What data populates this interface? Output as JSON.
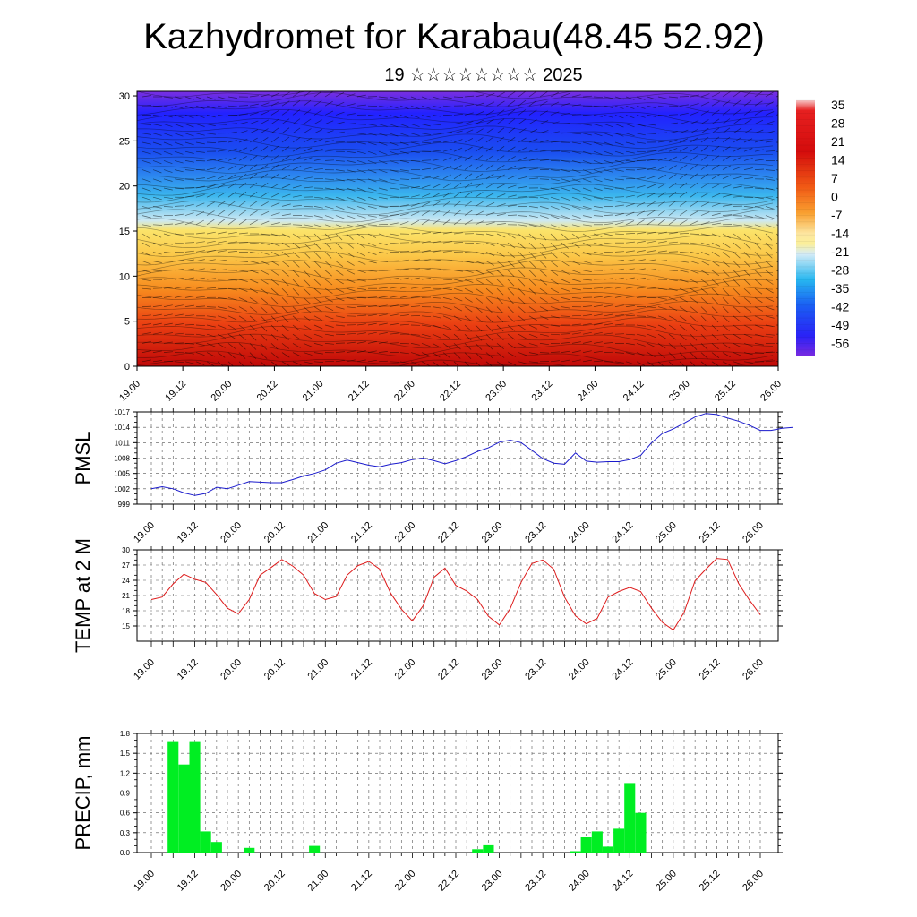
{
  "header": {
    "title": "Kazhydromet for Karabau(48.45 52.92)",
    "subtitle": "19 ☆☆☆☆☆☆☆☆ 2025"
  },
  "chart_data": [
    {
      "type": "heatmap",
      "description_key": "vertical-cross-section",
      "x_tick_labels": [
        "19.00",
        "19.12",
        "20.00",
        "20.12",
        "21.00",
        "21.12",
        "22.00",
        "22.12",
        "23.00",
        "23.12",
        "24.00",
        "24.12",
        "25.00",
        "25.12",
        "26.00"
      ],
      "y_tick_labels": [
        "0",
        "5",
        "10",
        "15",
        "20",
        "25",
        "30"
      ],
      "ylim": [
        0,
        30.5
      ],
      "colorbar_labels": [
        "35",
        "28",
        "21",
        "14",
        "7",
        "0",
        "-7",
        "-14",
        "-21",
        "-28",
        "-35",
        "-42",
        "-49",
        "-56"
      ],
      "colors": {
        "cold": "#5a1fd0",
        "cool": "#2a9fe8",
        "mild": "#fbe46a",
        "warm": "#f88a1e",
        "hot": "#d81010"
      }
    },
    {
      "type": "line",
      "ylabel": "PMSL",
      "y_tick_labels": [
        "999",
        "1002",
        "1005",
        "1008",
        "1011",
        "1014",
        "1017"
      ],
      "ylim": [
        999,
        1017
      ],
      "x_tick_labels": [
        "19.00",
        "19.12",
        "20.00",
        "20.12",
        "21.00",
        "21.12",
        "22.00",
        "22.12",
        "23.00",
        "23.12",
        "24.00",
        "24.12",
        "25.00",
        "25.12",
        "26.00"
      ],
      "x_step_hours": 3,
      "color": "#1a1acc",
      "values": [
        1002.0,
        1002.4,
        1002.0,
        1001.2,
        1000.7,
        1001.1,
        1002.3,
        1002.0,
        1002.7,
        1003.4,
        1003.3,
        1003.2,
        1003.2,
        1003.8,
        1004.5,
        1005.0,
        1005.7,
        1007.0,
        1007.6,
        1007.1,
        1006.6,
        1006.3,
        1006.8,
        1007.1,
        1007.7,
        1008.0,
        1007.5,
        1006.9,
        1007.5,
        1008.3,
        1009.3,
        1010.0,
        1011.1,
        1011.5,
        1011.0,
        1009.5,
        1007.9,
        1007.0,
        1006.8,
        1009.0,
        1007.4,
        1007.2,
        1007.3,
        1007.3,
        1007.7,
        1008.5,
        1011.0,
        1012.8,
        1013.7,
        1014.8,
        1016.0,
        1016.7,
        1016.5,
        1015.8,
        1015.2,
        1014.4,
        1013.4,
        1013.4,
        1013.8,
        1014.0
      ]
    },
    {
      "type": "line",
      "ylabel": "TEMP at 2 M",
      "y_tick_labels": [
        "15",
        "18",
        "21",
        "24",
        "27",
        "30"
      ],
      "ylim": [
        12,
        30
      ],
      "x_tick_labels": [
        "19.00",
        "19.12",
        "20.00",
        "20.12",
        "21.00",
        "21.12",
        "22.00",
        "22.12",
        "23.00",
        "23.12",
        "24.00",
        "24.12",
        "25.00",
        "25.12",
        "26.00"
      ],
      "x_step_hours": 3,
      "color": "#dd1a1a",
      "values": [
        20.2,
        20.7,
        23.3,
        25.2,
        24.2,
        23.6,
        21.2,
        18.5,
        17.4,
        20.2,
        25.0,
        26.5,
        28.1,
        26.8,
        25.0,
        21.4,
        20.2,
        20.8,
        25.0,
        26.9,
        27.7,
        26.2,
        21.5,
        18.3,
        16.0,
        19.0,
        24.6,
        26.4,
        23.0,
        21.9,
        20.2,
        16.9,
        15.2,
        18.4,
        23.6,
        27.3,
        28.0,
        26.2,
        20.7,
        17.0,
        15.4,
        16.5,
        20.7,
        21.8,
        22.6,
        21.8,
        18.5,
        15.7,
        14.2,
        17.7,
        23.9,
        26.2,
        28.3,
        28.1,
        23.4,
        20.1,
        17.2
      ]
    },
    {
      "type": "bar",
      "ylabel": "PRECIP, mm",
      "y_tick_labels": [
        "0.0",
        "0.3",
        "0.6",
        "0.9",
        "1.2",
        "1.5",
        "1.8"
      ],
      "ylim": [
        0,
        1.8
      ],
      "x_tick_labels": [
        "19.00",
        "19.12",
        "20.00",
        "20.12",
        "21.00",
        "21.12",
        "22.00",
        "22.12",
        "23.00",
        "23.12",
        "24.00",
        "24.12",
        "25.00",
        "25.12",
        "26.00"
      ],
      "x_step_hours": 3,
      "color": "#00ee22",
      "values": [
        0,
        0,
        1.67,
        1.33,
        1.67,
        0.32,
        0.16,
        0,
        0,
        0.07,
        0,
        0,
        0,
        0,
        0,
        0.1,
        0,
        0,
        0,
        0,
        0,
        0,
        0,
        0,
        0,
        0,
        0,
        0,
        0,
        0,
        0.05,
        0.11,
        0,
        0,
        0,
        0,
        0,
        0,
        0,
        0.02,
        0.23,
        0.32,
        0.09,
        0.36,
        1.05,
        0.6,
        0,
        0,
        0,
        0,
        0,
        0,
        0,
        0,
        0,
        0,
        0
      ]
    }
  ]
}
